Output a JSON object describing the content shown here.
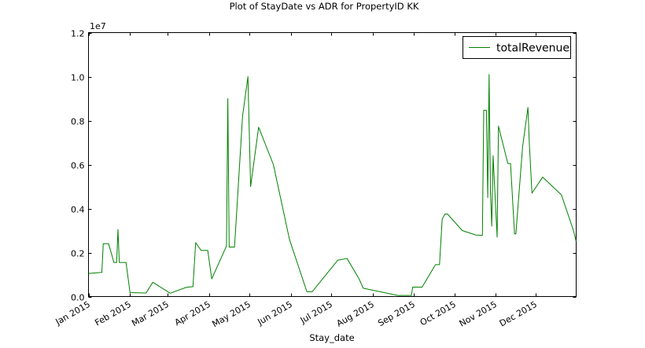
{
  "chart_data": {
    "type": "line",
    "title": "Plot of StayDate vs ADR for PropertyID KK",
    "xlabel": "Stay_date",
    "ylabel": "",
    "y_offset_label": "1e7",
    "y_scale": 10000000,
    "x_range": [
      "2015-01-01",
      "2015-12-31"
    ],
    "ylim": [
      0,
      12000000
    ],
    "y_ticks": [
      0,
      2000000,
      4000000,
      6000000,
      8000000,
      10000000,
      12000000
    ],
    "y_tick_labels": [
      "0.0",
      "0.2",
      "0.4",
      "0.6",
      "0.8",
      "1.0",
      "1.2"
    ],
    "x_ticks": [
      {
        "date": "2015-01-01",
        "label": "Jan 2015"
      },
      {
        "date": "2015-02-01",
        "label": "Feb 2015"
      },
      {
        "date": "2015-03-01",
        "label": "Mar 2015"
      },
      {
        "date": "2015-04-01",
        "label": "Apr 2015"
      },
      {
        "date": "2015-05-01",
        "label": "May 2015"
      },
      {
        "date": "2015-06-01",
        "label": "Jun 2015"
      },
      {
        "date": "2015-07-01",
        "label": "Jul 2015"
      },
      {
        "date": "2015-08-01",
        "label": "Aug 2015"
      },
      {
        "date": "2015-09-01",
        "label": "Sep 2015"
      },
      {
        "date": "2015-10-01",
        "label": "Oct 2015"
      },
      {
        "date": "2015-11-01",
        "label": "Nov 2015"
      },
      {
        "date": "2015-12-01",
        "label": "Dec 2015"
      }
    ],
    "grid": false,
    "legend_position": "top-right",
    "series": [
      {
        "name": "totalRevenue",
        "color": "#008000",
        "points": [
          [
            "2015-01-01",
            1050000
          ],
          [
            "2015-01-11",
            1100000
          ],
          [
            "2015-01-12",
            2400000
          ],
          [
            "2015-01-16",
            2400000
          ],
          [
            "2015-01-20",
            1550000
          ],
          [
            "2015-01-22",
            1550000
          ],
          [
            "2015-01-23",
            3050000
          ],
          [
            "2015-01-24",
            1550000
          ],
          [
            "2015-01-29",
            1550000
          ],
          [
            "2015-02-01",
            180000
          ],
          [
            "2015-02-13",
            160000
          ],
          [
            "2015-02-18",
            650000
          ],
          [
            "2015-03-03",
            150000
          ],
          [
            "2015-03-15",
            420000
          ],
          [
            "2015-03-20",
            450000
          ],
          [
            "2015-03-22",
            2450000
          ],
          [
            "2015-03-26",
            2100000
          ],
          [
            "2015-03-31",
            2100000
          ],
          [
            "2015-04-03",
            800000
          ],
          [
            "2015-04-14",
            2300000
          ],
          [
            "2015-04-15",
            9000000
          ],
          [
            "2015-04-16",
            2250000
          ],
          [
            "2015-04-20",
            2250000
          ],
          [
            "2015-04-26",
            8200000
          ],
          [
            "2015-04-30",
            10000000
          ],
          [
            "2015-05-02",
            5000000
          ],
          [
            "2015-05-08",
            7700000
          ],
          [
            "2015-05-19",
            6000000
          ],
          [
            "2015-05-31",
            2600000
          ],
          [
            "2015-06-13",
            220000
          ],
          [
            "2015-06-17",
            220000
          ],
          [
            "2015-07-06",
            1650000
          ],
          [
            "2015-07-13",
            1730000
          ],
          [
            "2015-07-22",
            800000
          ],
          [
            "2015-07-25",
            380000
          ],
          [
            "2015-08-20",
            50000
          ],
          [
            "2015-08-30",
            50000
          ],
          [
            "2015-08-31",
            430000
          ],
          [
            "2015-09-07",
            430000
          ],
          [
            "2015-09-17",
            1450000
          ],
          [
            "2015-09-20",
            1450000
          ],
          [
            "2015-09-22",
            3520000
          ],
          [
            "2015-09-24",
            3750000
          ],
          [
            "2015-09-26",
            3750000
          ],
          [
            "2015-10-07",
            3000000
          ],
          [
            "2015-10-17",
            2800000
          ],
          [
            "2015-10-22",
            2780000
          ],
          [
            "2015-10-23",
            8470000
          ],
          [
            "2015-10-25",
            8470000
          ],
          [
            "2015-10-26",
            4500000
          ],
          [
            "2015-10-27",
            10100000
          ],
          [
            "2015-10-28",
            4800000
          ],
          [
            "2015-10-29",
            3200000
          ],
          [
            "2015-10-30",
            6400000
          ],
          [
            "2015-11-02",
            2700000
          ],
          [
            "2015-11-03",
            7750000
          ],
          [
            "2015-11-10",
            6050000
          ],
          [
            "2015-11-12",
            6050000
          ],
          [
            "2015-11-15",
            2850000
          ],
          [
            "2015-11-16",
            2850000
          ],
          [
            "2015-11-21",
            6800000
          ],
          [
            "2015-11-25",
            8600000
          ],
          [
            "2015-11-26",
            7000000
          ],
          [
            "2015-11-28",
            4700000
          ],
          [
            "2015-12-06",
            5430000
          ],
          [
            "2015-12-20",
            4620000
          ],
          [
            "2015-12-29",
            3000000
          ],
          [
            "2015-12-31",
            2500000
          ]
        ]
      }
    ]
  }
}
